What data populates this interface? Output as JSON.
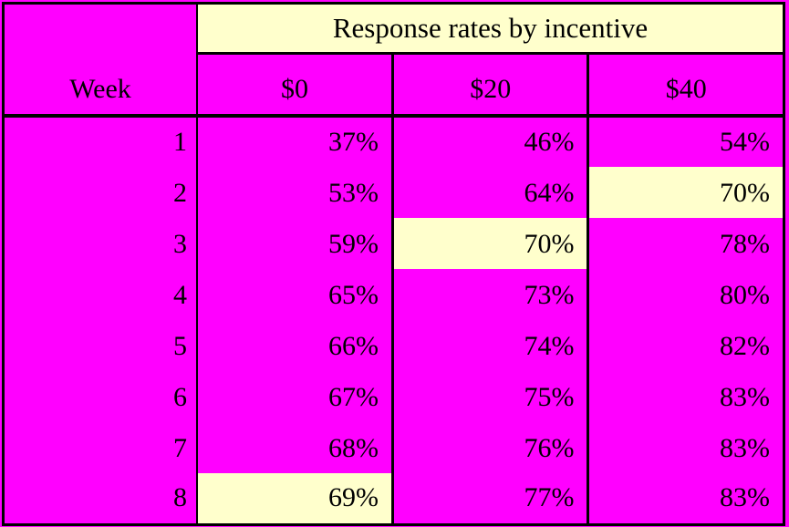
{
  "title": "Response rates by incentive",
  "header": {
    "week": "Week",
    "incentives": [
      "$0",
      "$20",
      "$40"
    ]
  },
  "rows": [
    {
      "week": "1",
      "rates": [
        "37%",
        "46%",
        "54%"
      ],
      "highlighted": []
    },
    {
      "week": "2",
      "rates": [
        "53%",
        "64%",
        "70%"
      ],
      "highlighted": [
        "$40"
      ]
    },
    {
      "week": "3",
      "rates": [
        "59%",
        "70%",
        "78%"
      ],
      "highlighted": [
        "$20"
      ]
    },
    {
      "week": "4",
      "rates": [
        "65%",
        "73%",
        "80%"
      ],
      "highlighted": []
    },
    {
      "week": "5",
      "rates": [
        "66%",
        "74%",
        "82%"
      ],
      "highlighted": []
    },
    {
      "week": "6",
      "rates": [
        "67%",
        "75%",
        "83%"
      ],
      "highlighted": []
    },
    {
      "week": "7",
      "rates": [
        "68%",
        "76%",
        "83%"
      ],
      "highlighted": []
    },
    {
      "week": "8",
      "rates": [
        "69%",
        "77%",
        "83%"
      ],
      "highlighted": [
        "$0"
      ]
    }
  ],
  "colors": {
    "table_background": "#ff00ff",
    "highlight_background": "#ffffcc",
    "border": "#000000",
    "text": "#000000"
  },
  "chart_data": {
    "type": "table",
    "title": "Response rates by incentive",
    "xlabel": "Week",
    "unit": "%",
    "categories": [
      1,
      2,
      3,
      4,
      5,
      6,
      7,
      8
    ],
    "series": [
      {
        "name": "$0",
        "values": [
          37,
          53,
          59,
          65,
          66,
          67,
          68,
          69
        ]
      },
      {
        "name": "$20",
        "values": [
          46,
          64,
          70,
          73,
          74,
          75,
          76,
          77
        ]
      },
      {
        "name": "$40",
        "values": [
          54,
          70,
          78,
          80,
          82,
          83,
          83,
          83
        ]
      }
    ],
    "highlighted_cells": [
      {
        "week": 2,
        "series": "$40",
        "value": 70
      },
      {
        "week": 3,
        "series": "$20",
        "value": 70
      },
      {
        "week": 8,
        "series": "$0",
        "value": 69
      }
    ]
  }
}
